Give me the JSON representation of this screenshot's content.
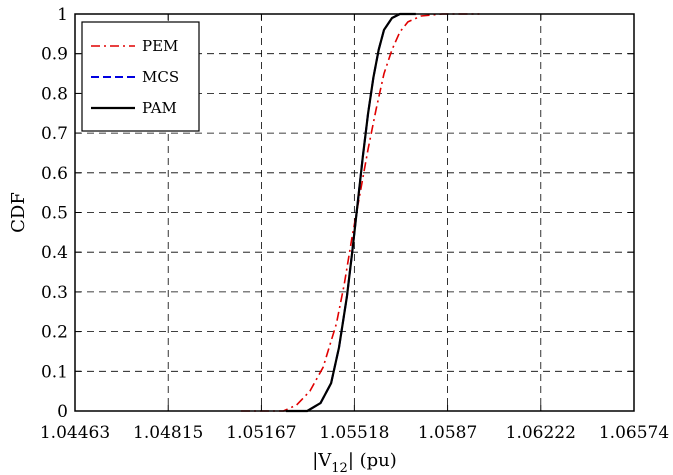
{
  "chart_data": {
    "type": "line",
    "xlabel": "|V12| (pu)",
    "xlabel_parts": {
      "prefix": "|V",
      "sub": "12",
      "suffix": "| (pu)"
    },
    "ylabel": "CDF",
    "xlim": [
      1.04463,
      1.06574
    ],
    "ylim": [
      0,
      1
    ],
    "x_ticks": [
      1.04463,
      1.04815,
      1.05167,
      1.05518,
      1.0587,
      1.06222,
      1.06574
    ],
    "x_tick_labels": [
      "1.04463",
      "1.04815",
      "1.05167",
      "1.05518",
      "1.0587",
      "1.06222",
      "1.06574"
    ],
    "y_ticks": [
      0,
      0.1,
      0.2,
      0.3,
      0.4,
      0.5,
      0.6,
      0.7,
      0.8,
      0.9,
      1
    ],
    "y_tick_labels": [
      "0",
      "0.1",
      "0.2",
      "0.3",
      "0.4",
      "0.5",
      "0.6",
      "0.7",
      "0.8",
      "0.9",
      "1"
    ],
    "grid": true,
    "legend_position": "top-left",
    "series": [
      {
        "name": "PEM",
        "color": "#e00000",
        "dash": "dashdot",
        "x": [
          1.0509,
          1.0525,
          1.053,
          1.0535,
          1.054,
          1.0545,
          1.0548,
          1.0551,
          1.0554,
          1.0557,
          1.056,
          1.0563,
          1.0566,
          1.0569,
          1.0572,
          1.0577,
          1.0585,
          1.0599
        ],
        "y": [
          0.0,
          0.0,
          0.015,
          0.05,
          0.11,
          0.22,
          0.32,
          0.44,
          0.55,
          0.66,
          0.76,
          0.85,
          0.91,
          0.955,
          0.98,
          0.995,
          1.0,
          1.0
        ]
      },
      {
        "name": "MCS",
        "color": "#0000e0",
        "dash": "dashed",
        "x": [
          1.0526,
          1.0534,
          1.0539,
          1.0543,
          1.0546,
          1.0549,
          1.0551,
          1.0553,
          1.0555,
          1.0557,
          1.0559,
          1.0561,
          1.0563,
          1.0566,
          1.0569,
          1.0575
        ],
        "y": [
          0.0,
          0.0,
          0.02,
          0.07,
          0.16,
          0.29,
          0.4,
          0.52,
          0.64,
          0.75,
          0.84,
          0.91,
          0.96,
          0.99,
          1.0,
          1.0
        ]
      },
      {
        "name": "PAM",
        "color": "#000000",
        "dash": "solid",
        "x": [
          1.0526,
          1.0534,
          1.0539,
          1.0543,
          1.0546,
          1.0549,
          1.0551,
          1.0553,
          1.0555,
          1.0557,
          1.0559,
          1.0561,
          1.0563,
          1.0566,
          1.0569,
          1.0575
        ],
        "y": [
          0.0,
          0.0,
          0.02,
          0.07,
          0.16,
          0.29,
          0.4,
          0.52,
          0.64,
          0.75,
          0.84,
          0.91,
          0.96,
          0.99,
          1.0,
          1.0
        ]
      }
    ]
  }
}
